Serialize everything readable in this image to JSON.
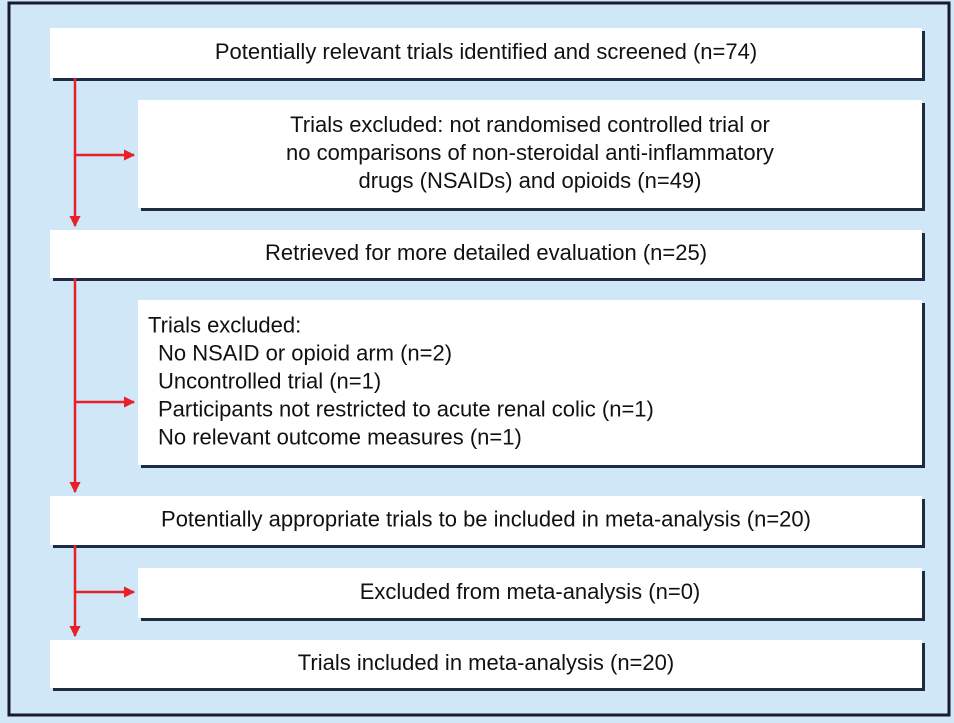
{
  "nodes": [
    {
      "lines": [
        "Potentially relevant trials identified and screened (n=74)"
      ]
    },
    {
      "lines": [
        "Trials excluded: not randomised controlled trial or",
        "no comparisons of non-steroidal anti-inflammatory",
        "drugs (NSAIDs) and opioids (n=49)"
      ]
    },
    {
      "lines": [
        "Retrieved for more detailed evaluation (n=25)"
      ]
    },
    {
      "lines": [
        "Trials excluded:",
        "No NSAID or opioid arm (n=2)",
        "Uncontrolled trial (n=1)",
        "Participants not restricted to acute renal colic (n=1)",
        "No relevant outcome measures (n=1)"
      ]
    },
    {
      "lines": [
        "Potentially appropriate trials to be included in meta-analysis (n=20)"
      ]
    },
    {
      "lines": [
        "Excluded from meta-analysis (n=0)"
      ]
    },
    {
      "lines": [
        "Trials included in meta-analysis (n=20)"
      ]
    }
  ]
}
